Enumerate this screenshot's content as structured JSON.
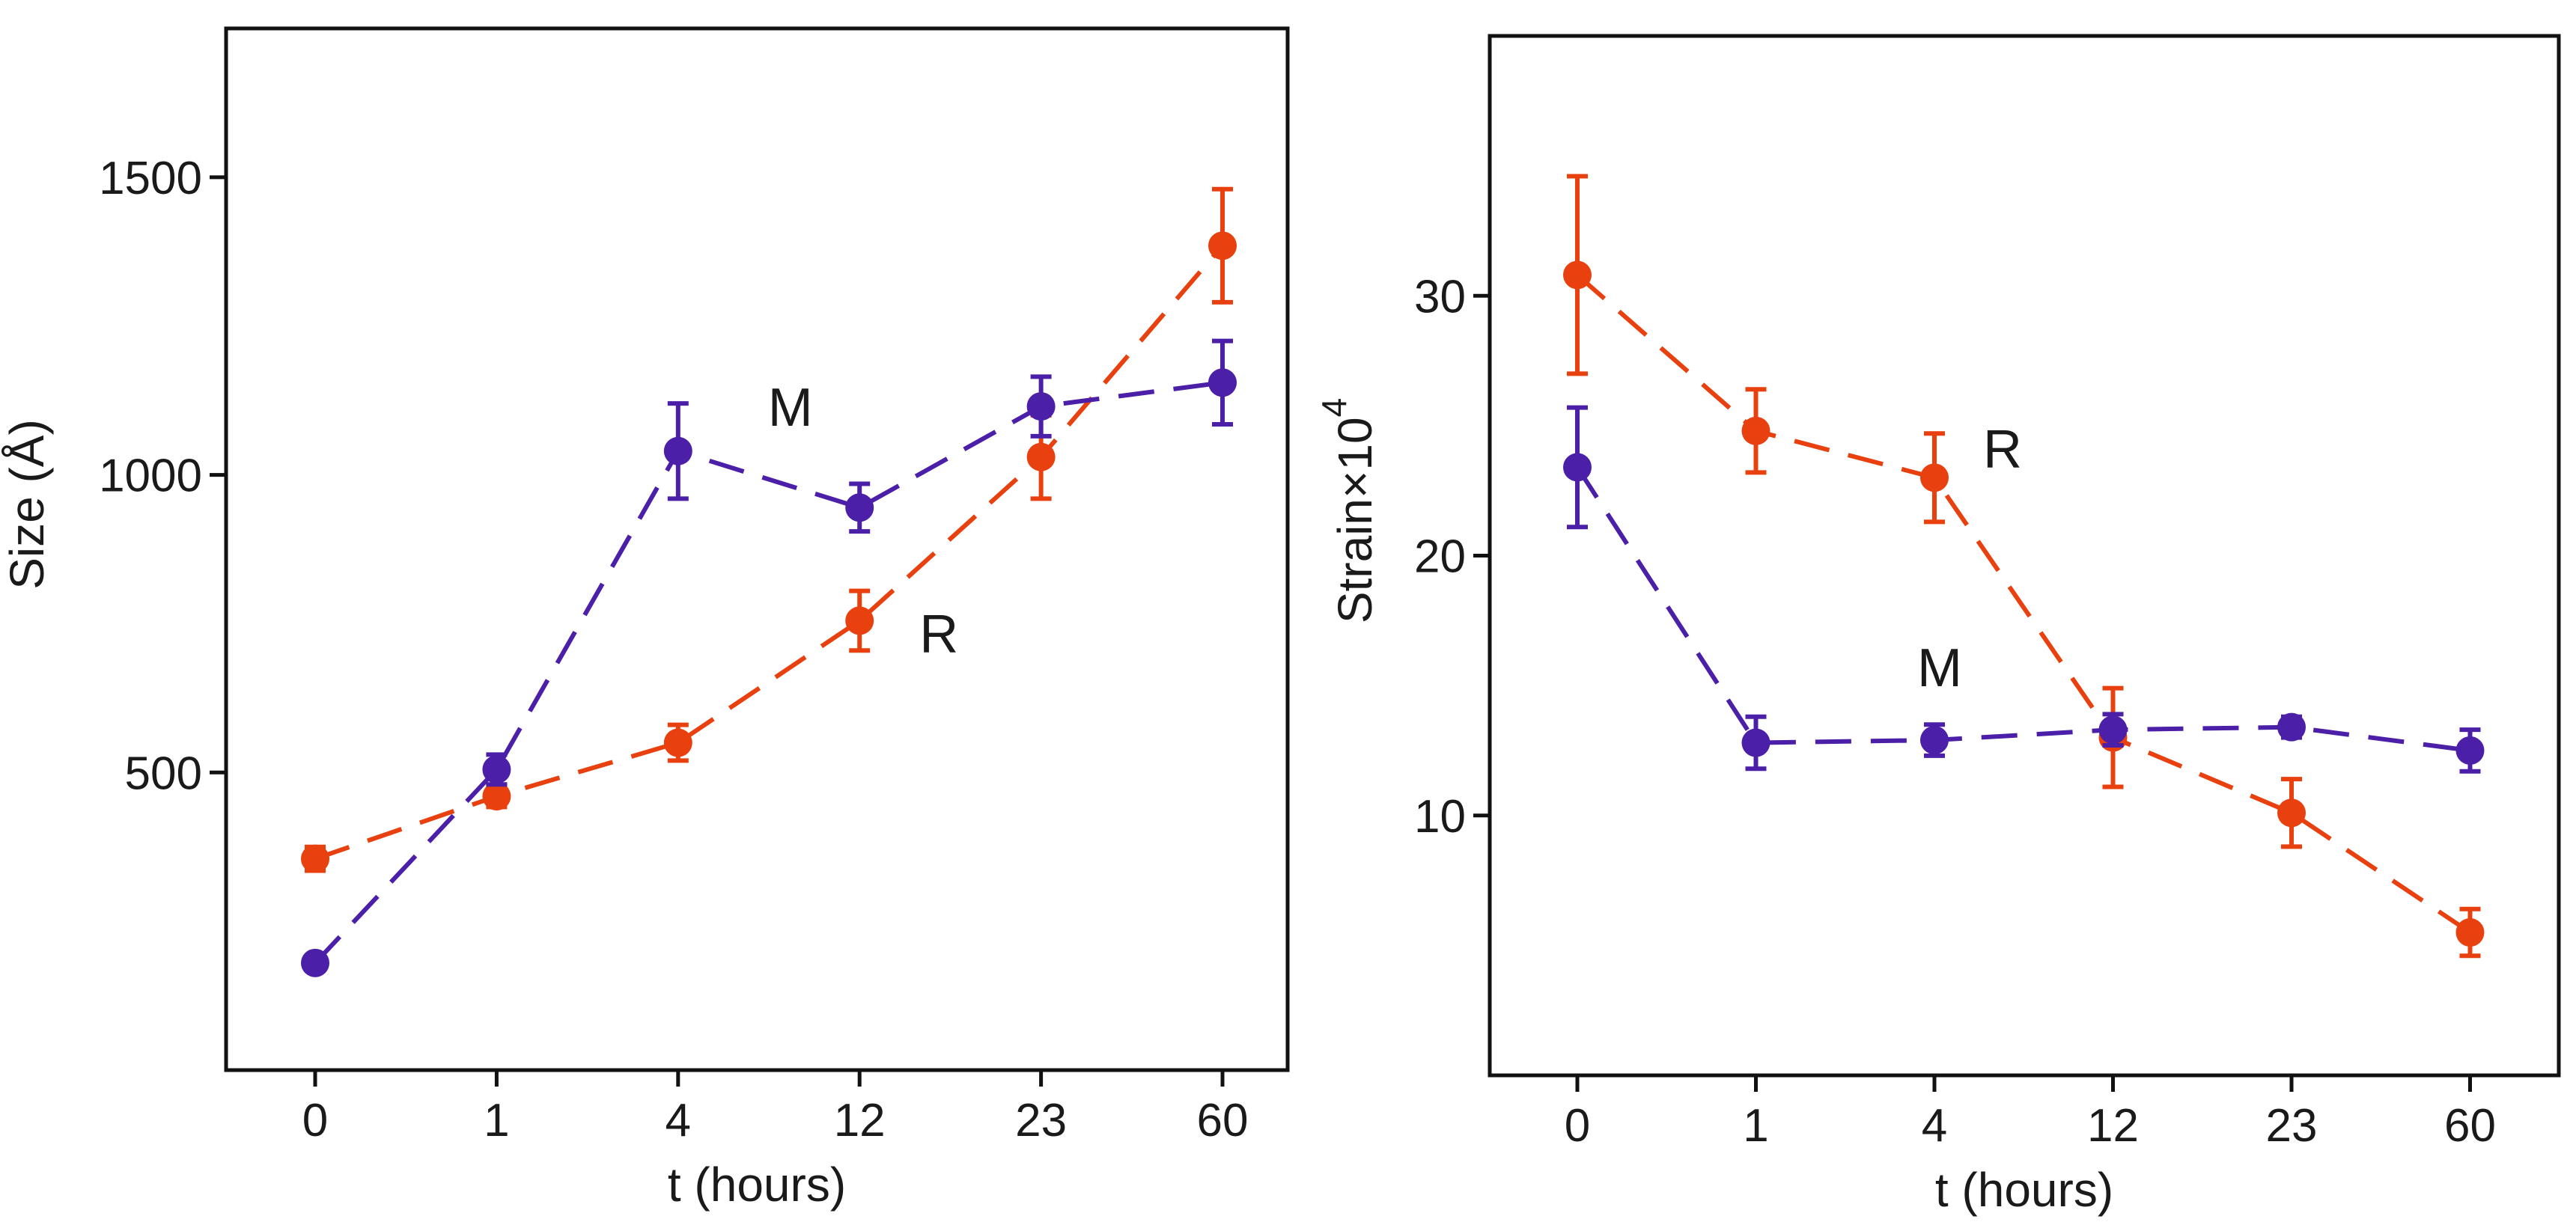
{
  "colors": {
    "M": "#4b1fa8",
    "R": "#e8400f",
    "axis": "#111111"
  },
  "chart_data": [
    {
      "type": "line",
      "categories": [
        "0",
        "1",
        "4",
        "12",
        "23",
        "60"
      ],
      "xlabel": "t (hours)",
      "ylabel": "Size (Å)",
      "ylim": [
        0,
        1750
      ],
      "yticks": [
        500,
        1000,
        1500
      ],
      "ytick_labels": [
        "500",
        "1000",
        "1500"
      ],
      "series": [
        {
          "name": "M",
          "label": "M",
          "color": "#4b1fa8",
          "values": [
            180,
            505,
            1040,
            945,
            1115,
            1155
          ],
          "errors": [
            0,
            25,
            80,
            40,
            50,
            70
          ]
        },
        {
          "name": "R",
          "label": "R",
          "color": "#e8400f",
          "values": [
            355,
            460,
            550,
            755,
            1030,
            1385
          ],
          "errors": [
            20,
            18,
            30,
            50,
            70,
            95
          ]
        }
      ],
      "annotations": [
        {
          "text": "M",
          "series": "M",
          "at_category": "4",
          "at_value": 1040
        },
        {
          "text": "R",
          "series": "R",
          "at_category": "12",
          "at_value": 755
        }
      ]
    },
    {
      "type": "line",
      "categories": [
        "0",
        "1",
        "4",
        "12",
        "23",
        "60"
      ],
      "xlabel": "t (hours)",
      "ylabel": "Strain×10",
      "ylabel_superscript": "4",
      "ylim": [
        0,
        40
      ],
      "yticks": [
        10,
        20,
        30
      ],
      "ytick_labels": [
        "10",
        "20",
        "30"
      ],
      "series": [
        {
          "name": "M",
          "label": "M",
          "color": "#4b1fa8",
          "values": [
            23.4,
            12.8,
            12.9,
            13.3,
            13.4,
            12.5
          ],
          "errors": [
            2.3,
            1.0,
            0.6,
            0.6,
            0.4,
            0.8
          ]
        },
        {
          "name": "R",
          "label": "R",
          "color": "#e8400f",
          "values": [
            30.8,
            24.8,
            23.0,
            13.0,
            10.1,
            5.5
          ],
          "errors": [
            3.8,
            1.6,
            1.7,
            1.9,
            1.3,
            0.9
          ]
        }
      ],
      "annotations": [
        {
          "text": "R",
          "series": "R",
          "at_category": "4",
          "at_value": 23.0
        },
        {
          "text": "M",
          "series": "M",
          "at_category": "4",
          "at_value": 12.9
        }
      ]
    }
  ]
}
